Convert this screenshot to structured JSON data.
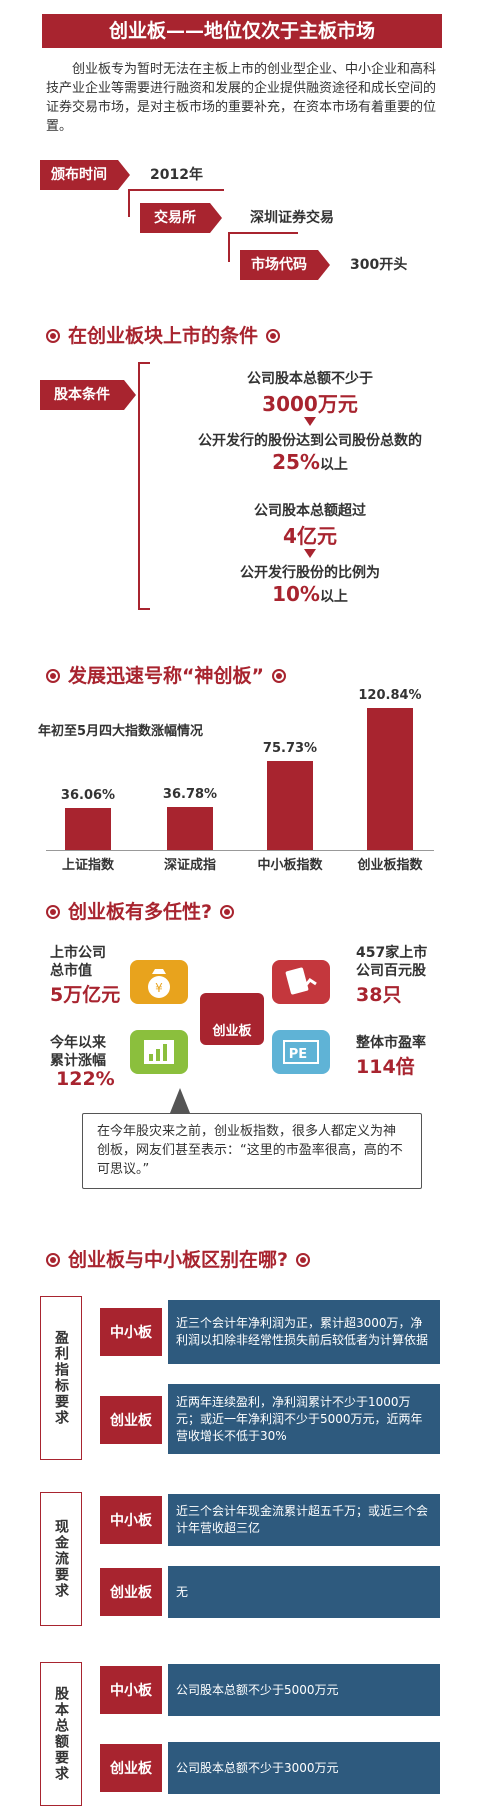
{
  "header": {
    "title": "创业板——地位仅次于主板市场",
    "intro": "创业板专为暂时无法在主板上市的创业型企业、中小企业和高科技产业企业等需要进行融资和发展的企业提供融资途径和成长空间的证券交易市场，是对主板市场的重要补充，在资本市场有着重要的位置。"
  },
  "facts": [
    {
      "label": "颁布时间",
      "value": "2012年"
    },
    {
      "label": "交易所",
      "value": "深圳证券交易"
    },
    {
      "label": "市场代码",
      "value": "300开头"
    }
  ],
  "conditions": {
    "title": "在创业板块上市的条件",
    "tag": "股本条件",
    "rule1": {
      "line1": "公司股本总额不少于",
      "big1": "3000万元",
      "line2": "公开发行的股份达到公司股份总数的",
      "big2": "25%",
      "suffix2": "以上"
    },
    "rule2": {
      "line1": "公司股本总额超过",
      "big1": "4亿元",
      "line2": "公开发行股份的比例为",
      "big2": "10%",
      "suffix2": "以上"
    }
  },
  "growth": {
    "title": "发展迅速号称“神创板”",
    "subtitle": "年初至5月四大指数涨幅情况"
  },
  "chart_data": {
    "type": "bar",
    "title": "年初至5月四大指数涨幅情况",
    "categories": [
      "上证指数",
      "深证成指",
      "中小板指数",
      "创业板指数"
    ],
    "values": [
      36.06,
      36.78,
      75.73,
      120.84
    ],
    "value_labels": [
      "36.06%",
      "36.78%",
      "75.73%",
      "120.84%"
    ],
    "color": "#a8242f"
  },
  "diverse": {
    "title": "创业板有多任性?",
    "center": "创业板",
    "stats": [
      {
        "label1": "上市公司",
        "label2": "总市值",
        "value": "5万亿元"
      },
      {
        "label1": "457家上市",
        "label2": "公司百元股",
        "value": "38只"
      },
      {
        "label1": "今年以来",
        "label2": "累计涨幅",
        "value": "122%"
      },
      {
        "label1": "整体市盈率",
        "label2": "",
        "value": "114倍"
      }
    ],
    "icon_pe": "PE",
    "quote": "在今年股灾来之前，创业板指数，很多人都定义为神创板，网友们甚至表示：“这里的市盈率很高，高的不可思议。”",
    "colors": {
      "yellow": "#e8a31d",
      "red": "#c4373d",
      "green": "#8bbf3d",
      "blue": "#5fb3d6"
    }
  },
  "compare": {
    "title": "创业板与中小板区别在哪?",
    "groups": [
      {
        "name": "盈利指标要求",
        "rows": [
          {
            "kind": "中小板",
            "text": "近三个会计年净利润为正，累计超3000万，净利润以扣除非经常性损失前后较低者为计算依据"
          },
          {
            "kind": "创业板",
            "text": "近两年连续盈利，净利润累计不少于1000万元；或近一年净利润不少于5000万元，近两年营收增长不低于30%"
          }
        ]
      },
      {
        "name": "现金流要求",
        "rows": [
          {
            "kind": "中小板",
            "text": "近三个会计年现金流累计超五千万；或近三个会计年营收超三亿"
          },
          {
            "kind": "创业板",
            "text": "无"
          }
        ]
      },
      {
        "name": "股本总额要求",
        "rows": [
          {
            "kind": "中小板",
            "text": "公司股本总额不少于5000万元"
          },
          {
            "kind": "创业板",
            "text": "公司股本总额不少于3000万元"
          }
        ]
      }
    ]
  }
}
